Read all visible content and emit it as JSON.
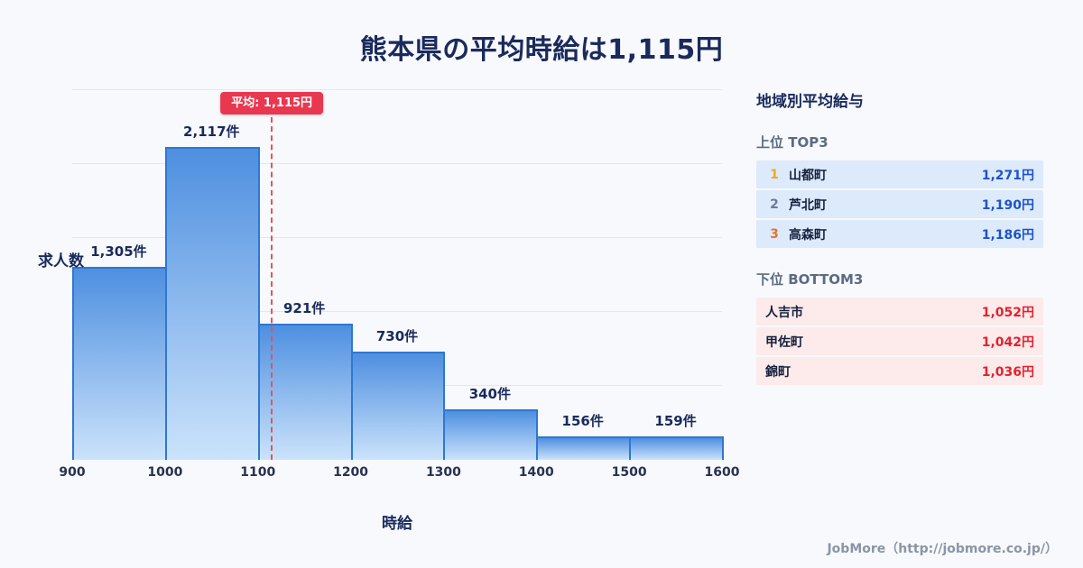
{
  "page": {
    "title": "熊本県の平均時給は1,115円",
    "footer": "JobMore（http://jobmore.co.jp/）"
  },
  "chart_data": {
    "type": "bar",
    "title": "熊本県の平均時給は1,115円",
    "xlabel": "時給",
    "ylabel": "求人数",
    "bins": [
      [
        900,
        1000
      ],
      [
        1000,
        1100
      ],
      [
        1100,
        1200
      ],
      [
        1200,
        1300
      ],
      [
        1300,
        1400
      ],
      [
        1400,
        1500
      ],
      [
        1500,
        1600
      ]
    ],
    "values": [
      1305,
      2117,
      921,
      730,
      340,
      156,
      159
    ],
    "bar_labels": [
      "1,305件",
      "2,117件",
      "921件",
      "730件",
      "340件",
      "156件",
      "159件"
    ],
    "x_ticks": [
      900,
      1000,
      1100,
      1200,
      1300,
      1400,
      1500,
      1600
    ],
    "x_tick_labels": [
      "900",
      "1000",
      "1100",
      "1200",
      "1300",
      "1400",
      "1500",
      "1600"
    ],
    "ylim": [
      0,
      2500
    ],
    "grid": true,
    "grid_step": 500,
    "legend": "none",
    "mean_line": {
      "value": 1115,
      "label": "平均: 1,115円"
    }
  },
  "sidebar": {
    "title": "地域別平均給与",
    "top3": {
      "heading": "上位 TOP3",
      "rows": [
        {
          "rank": "1",
          "name": "山都町",
          "value": "1,271円"
        },
        {
          "rank": "2",
          "name": "芦北町",
          "value": "1,190円"
        },
        {
          "rank": "3",
          "name": "高森町",
          "value": "1,186円"
        }
      ]
    },
    "bottom3": {
      "heading": "下位 BOTTOM3",
      "rows": [
        {
          "name": "人吉市",
          "value": "1,052円"
        },
        {
          "name": "甲佐町",
          "value": "1,042円"
        },
        {
          "name": "錦町",
          "value": "1,036円"
        }
      ]
    }
  },
  "colors": {
    "background": "#f7f9fc",
    "title_text": "#1a2a5c",
    "grid_line": "#e2e8f1",
    "bar_fill_top": "#4e8fe0",
    "bar_fill_bottom": "#cbe3fb",
    "bar_border": "#2f77d2",
    "mean_line": "#e25555",
    "mean_badge_bg": "#e8384f",
    "heading_muted": "#5c6b84",
    "top3_row_bg": "#dceafc",
    "top3_value": "#1d53c8",
    "bottom3_row_bg": "#fdeaea",
    "bottom3_value": "#e02330",
    "rank1": "#f5a623",
    "rank2": "#6b7a99",
    "rank3": "#e2762d",
    "footer_text": "#8b95a5"
  }
}
